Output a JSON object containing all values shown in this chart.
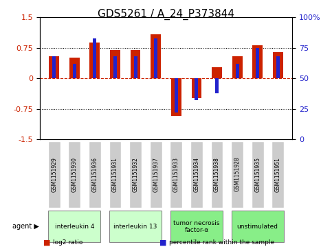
{
  "title": "GDS5261 / A_24_P373844",
  "samples": [
    "GSM1151929",
    "GSM1151930",
    "GSM1151936",
    "GSM1151931",
    "GSM1151932",
    "GSM1151937",
    "GSM1151933",
    "GSM1151934",
    "GSM1151938",
    "GSM1151928",
    "GSM1151935",
    "GSM1151951"
  ],
  "log2_ratio": [
    0.55,
    0.52,
    0.88,
    0.7,
    0.7,
    1.08,
    -0.92,
    -0.48,
    0.28,
    0.55,
    0.82,
    0.65
  ],
  "percentile_rank": [
    68,
    62,
    83,
    68,
    68,
    83,
    22,
    32,
    38,
    62,
    75,
    68
  ],
  "bar_width": 0.5,
  "red_color": "#CC2200",
  "blue_color": "#2222CC",
  "ylim": [
    -1.5,
    1.5
  ],
  "yticks_left": [
    -1.5,
    -0.75,
    0,
    0.75,
    1.5
  ],
  "yticks_right": [
    0,
    25,
    50,
    75,
    100
  ],
  "hlines": [
    -0.75,
    0,
    0.75
  ],
  "agents": [
    {
      "label": "interleukin 4",
      "start": 0,
      "end": 2,
      "color": "#ccffcc"
    },
    {
      "label": "interleukin 13",
      "start": 3,
      "end": 5,
      "color": "#ccffcc"
    },
    {
      "label": "tumor necrosis\nfactor-α",
      "start": 6,
      "end": 8,
      "color": "#88ee88"
    },
    {
      "label": "unstimulated",
      "start": 9,
      "end": 11,
      "color": "#88ee88"
    }
  ],
  "legend_entries": [
    {
      "label": "log2 ratio",
      "color": "#CC2200"
    },
    {
      "label": "percentile rank within the sample",
      "color": "#2222CC"
    }
  ],
  "agent_label": "agent",
  "background_color": "#ffffff",
  "sample_box_color": "#cccccc",
  "title_fontsize": 11,
  "axis_fontsize": 8,
  "tick_fontsize": 8
}
